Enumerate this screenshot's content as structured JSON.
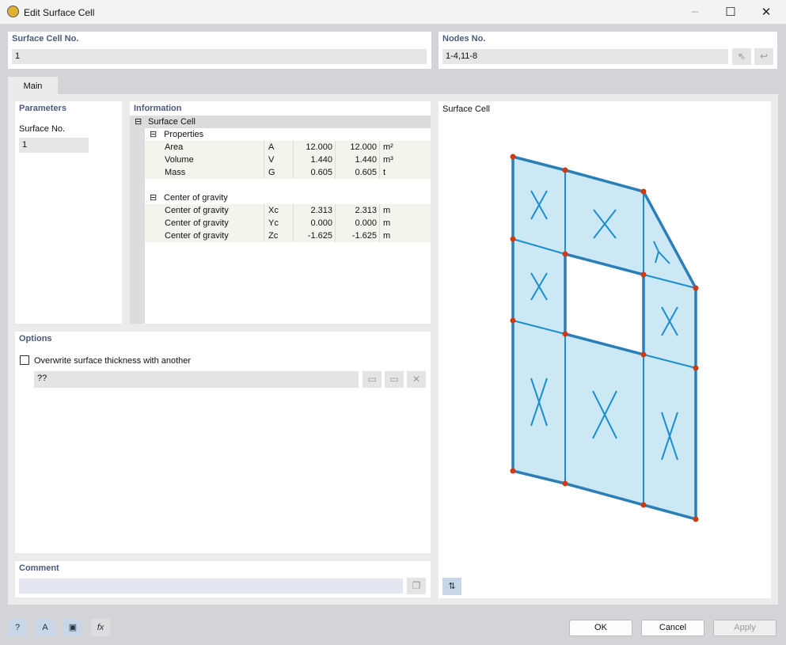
{
  "window": {
    "title": "Edit Surface Cell"
  },
  "surface_cell": {
    "label": "Surface Cell No.",
    "value": "1"
  },
  "nodes": {
    "label": "Nodes No.",
    "value": "1-4,11-8"
  },
  "tabs": [
    {
      "label": "Main"
    }
  ],
  "parameters": {
    "header": "Parameters",
    "surface_label": "Surface No.",
    "surface_value": "1"
  },
  "information": {
    "header": "Information",
    "root": "Surface Cell",
    "groups": [
      {
        "label": "Properties",
        "rows": [
          {
            "name": "Area",
            "sym": "A",
            "v1": "12.000",
            "v2": "12.000",
            "unit": "m²"
          },
          {
            "name": "Volume",
            "sym": "V",
            "v1": "1.440",
            "v2": "1.440",
            "unit": "m³"
          },
          {
            "name": "Mass",
            "sym": "G",
            "v1": "0.605",
            "v2": "0.605",
            "unit": "t"
          }
        ]
      },
      {
        "label": "Center of gravity",
        "rows": [
          {
            "name": "Center of gravity",
            "sym": "Xc",
            "v1": "2.313",
            "v2": "2.313",
            "unit": "m"
          },
          {
            "name": "Center of gravity",
            "sym": "Yc",
            "v1": "0.000",
            "v2": "0.000",
            "unit": "m"
          },
          {
            "name": "Center of gravity",
            "sym": "Zc",
            "v1": "-1.625",
            "v2": "-1.625",
            "unit": "m"
          }
        ]
      }
    ]
  },
  "options": {
    "header": "Options",
    "checkbox_label": "Overwrite surface thickness with another",
    "checked": false,
    "thickness_value": "??"
  },
  "comment": {
    "header": "Comment",
    "value": ""
  },
  "preview": {
    "header": "Surface Cell",
    "fill": "#cce8f4",
    "line": "#1a8fd0",
    "node": "#d03a10"
  },
  "footer": {
    "ok": "OK",
    "cancel": "Cancel",
    "apply": "Apply"
  }
}
